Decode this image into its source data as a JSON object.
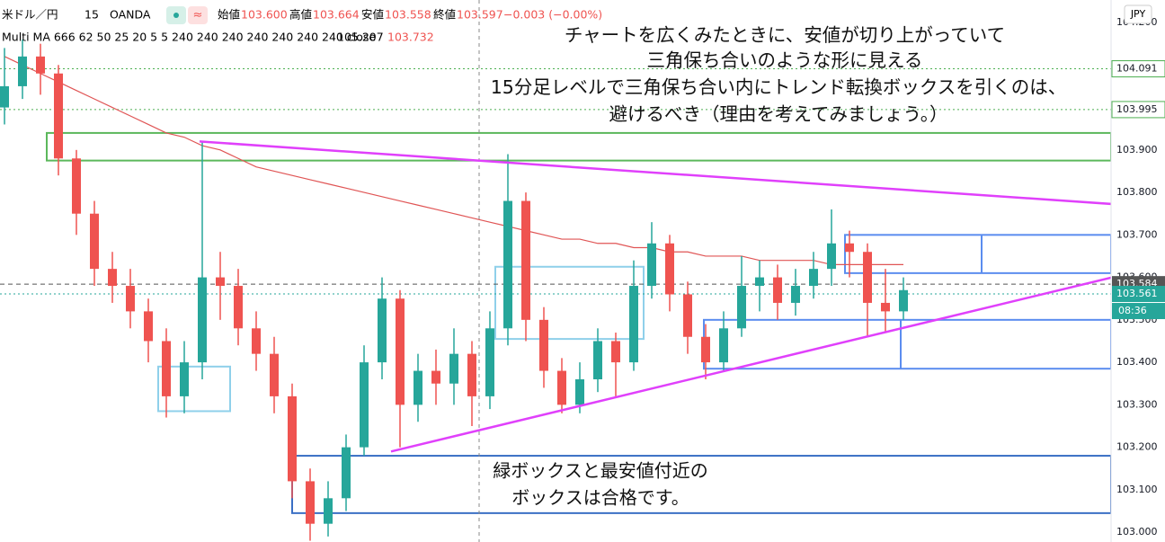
{
  "header": {
    "symbol": "米ドル／円",
    "interval": "15",
    "source": "OANDA",
    "ohlc": [
      {
        "label": "始値",
        "value": "103.600"
      },
      {
        "label": "高値",
        "value": "103.664"
      },
      {
        "label": "安値",
        "value": "103.558"
      },
      {
        "label": "終値",
        "value": "103.597"
      }
    ],
    "change": "−0.003 (−0.00%)",
    "indicator": "Multi MA 666 62 50 25 20 5 5 240 240 240 240 240 240 240 close",
    "indicator_values": [
      "105.207",
      "103.732"
    ],
    "currency": "JPY"
  },
  "annotations": {
    "top": [
      "チャートを広くみたときに、安値が切り上がっていて",
      "三角保ち合いのような形に見える",
      "15分足レベルで三角保ち合い内にトレンド転換ボックスを引くのは、",
      "避けるべき（理由を考えてみましょう。）"
    ],
    "bottom": [
      "緑ボックスと最安値付近の",
      "ボックスは合格です。"
    ]
  },
  "chart_data": {
    "type": "candlestick",
    "up_color": "#26a69a",
    "down_color": "#ef5350",
    "open": [
      104.0,
      104.05,
      104.12,
      104.08,
      103.88,
      103.75,
      103.62,
      103.58,
      103.52,
      103.45,
      103.32,
      103.4,
      103.6,
      103.58,
      103.48,
      103.42,
      103.32,
      103.12,
      103.02,
      103.08,
      103.2,
      103.4,
      103.55,
      103.3,
      103.38,
      103.35,
      103.42,
      103.32,
      103.48,
      103.78,
      103.5,
      103.38,
      103.3,
      103.36,
      103.45,
      103.4,
      103.58,
      103.68,
      103.56,
      103.46,
      103.4,
      103.48,
      103.58,
      103.6,
      103.54,
      103.58,
      103.62,
      103.68,
      103.66,
      103.54,
      103.52
    ],
    "high": [
      104.14,
      104.16,
      104.15,
      104.1,
      103.9,
      103.78,
      103.66,
      103.62,
      103.55,
      103.48,
      103.45,
      103.92,
      103.66,
      103.62,
      103.52,
      103.46,
      103.35,
      103.15,
      103.12,
      103.23,
      103.44,
      103.6,
      103.57,
      103.42,
      103.43,
      103.48,
      103.45,
      103.52,
      103.89,
      103.8,
      103.53,
      103.41,
      103.4,
      103.48,
      103.47,
      103.64,
      103.73,
      103.7,
      103.59,
      103.49,
      103.52,
      103.65,
      103.64,
      103.63,
      103.62,
      103.66,
      103.76,
      103.71,
      103.68,
      103.62,
      103.6
    ],
    "low": [
      103.96,
      104.02,
      104.03,
      103.84,
      103.7,
      103.58,
      103.54,
      103.48,
      103.4,
      103.27,
      103.28,
      103.36,
      103.5,
      103.44,
      103.38,
      103.28,
      103.08,
      102.98,
      102.99,
      103.05,
      103.18,
      103.36,
      103.2,
      103.26,
      103.3,
      103.3,
      103.25,
      103.29,
      103.44,
      103.45,
      103.34,
      103.28,
      103.28,
      103.33,
      103.32,
      103.38,
      103.55,
      103.52,
      103.42,
      103.36,
      103.38,
      103.46,
      103.52,
      103.5,
      103.51,
      103.55,
      103.58,
      103.6,
      103.46,
      103.47,
      103.5
    ],
    "close": [
      104.05,
      104.12,
      104.08,
      103.88,
      103.75,
      103.62,
      103.58,
      103.52,
      103.45,
      103.32,
      103.4,
      103.6,
      103.58,
      103.48,
      103.42,
      103.32,
      103.12,
      103.02,
      103.08,
      103.2,
      103.4,
      103.55,
      103.3,
      103.38,
      103.35,
      103.42,
      103.32,
      103.48,
      103.78,
      103.5,
      103.38,
      103.3,
      103.36,
      103.45,
      103.4,
      103.58,
      103.68,
      103.56,
      103.46,
      103.4,
      103.48,
      103.58,
      103.6,
      103.54,
      103.58,
      103.62,
      103.68,
      103.66,
      103.54,
      103.52,
      103.57
    ],
    "series": [
      {
        "color": "#e05555",
        "values": [
          104.12,
          104.1,
          104.08,
          104.06,
          104.04,
          104.02,
          104.0,
          103.98,
          103.96,
          103.94,
          103.93,
          103.91,
          103.9,
          103.88,
          103.86,
          103.85,
          103.84,
          103.83,
          103.82,
          103.81,
          103.8,
          103.79,
          103.78,
          103.77,
          103.76,
          103.75,
          103.74,
          103.73,
          103.72,
          103.71,
          103.7,
          103.69,
          103.69,
          103.68,
          103.68,
          103.67,
          103.67,
          103.66,
          103.66,
          103.65,
          103.65,
          103.65,
          103.64,
          103.64,
          103.64,
          103.64,
          103.63,
          103.63,
          103.63,
          103.63,
          103.63
        ]
      }
    ],
    "ylim": [
      102.977,
      104.253
    ],
    "yticks": [
      {
        "value": 103.0,
        "label": "103.000"
      },
      {
        "value": 103.1,
        "label": "103.100"
      },
      {
        "value": 103.2,
        "label": "103.200"
      },
      {
        "value": 103.3,
        "label": "103.300"
      },
      {
        "value": 103.4,
        "label": "103.400"
      },
      {
        "value": 103.5,
        "label": "103.500"
      },
      {
        "value": 103.6,
        "label": "103.600"
      },
      {
        "value": 103.7,
        "label": "103.700"
      },
      {
        "value": 103.8,
        "label": "103.800"
      },
      {
        "value": 103.9,
        "label": "103.900"
      },
      {
        "value": 104.0,
        "label": "104.000"
      },
      {
        "value": 104.2,
        "label": "104.200"
      }
    ],
    "price_markers": [
      {
        "value": 104.091,
        "color": "#4caf50"
      },
      {
        "value": 103.995,
        "color": "#4caf50"
      },
      {
        "value": 103.584,
        "color": "#555555"
      },
      {
        "value": 103.561,
        "color": "#26a69a"
      }
    ],
    "countdown": "08:36",
    "drawings": {
      "rectangles": [
        {
          "x": [
            2.35,
            61.55
          ],
          "y": [
            103.94,
            103.875
          ],
          "color": "#5cb85c"
        },
        {
          "x": [
            8.55,
            12.55
          ],
          "y": [
            103.39,
            103.285
          ],
          "color": "#8fd0ea"
        },
        {
          "x": [
            27.3,
            35.55
          ],
          "y": [
            103.625,
            103.455
          ],
          "color": "#8fd0ea"
        },
        {
          "x": [
            46.75,
            61.55
          ],
          "y": [
            103.7,
            103.61
          ],
          "color": "#5b8def",
          "divider": 54.35
        },
        {
          "x": [
            38.9,
            61.55
          ],
          "y": [
            103.5,
            103.385
          ],
          "color": "#5b8def",
          "divider": 49.85
        },
        {
          "x": [
            16.0,
            61.55
          ],
          "y": [
            103.18,
            103.045
          ],
          "color": "#3a6fc4"
        }
      ],
      "trend_lines": [
        {
          "x": [
            10.85,
            64.25
          ],
          "y": [
            103.92,
            103.765
          ],
          "color": "#e040fb"
        },
        {
          "x": [
            21.5,
            64.55
          ],
          "y": [
            103.19,
            103.63
          ],
          "color": "#e040fb"
        }
      ],
      "crosshair_x": 26.4
    }
  }
}
